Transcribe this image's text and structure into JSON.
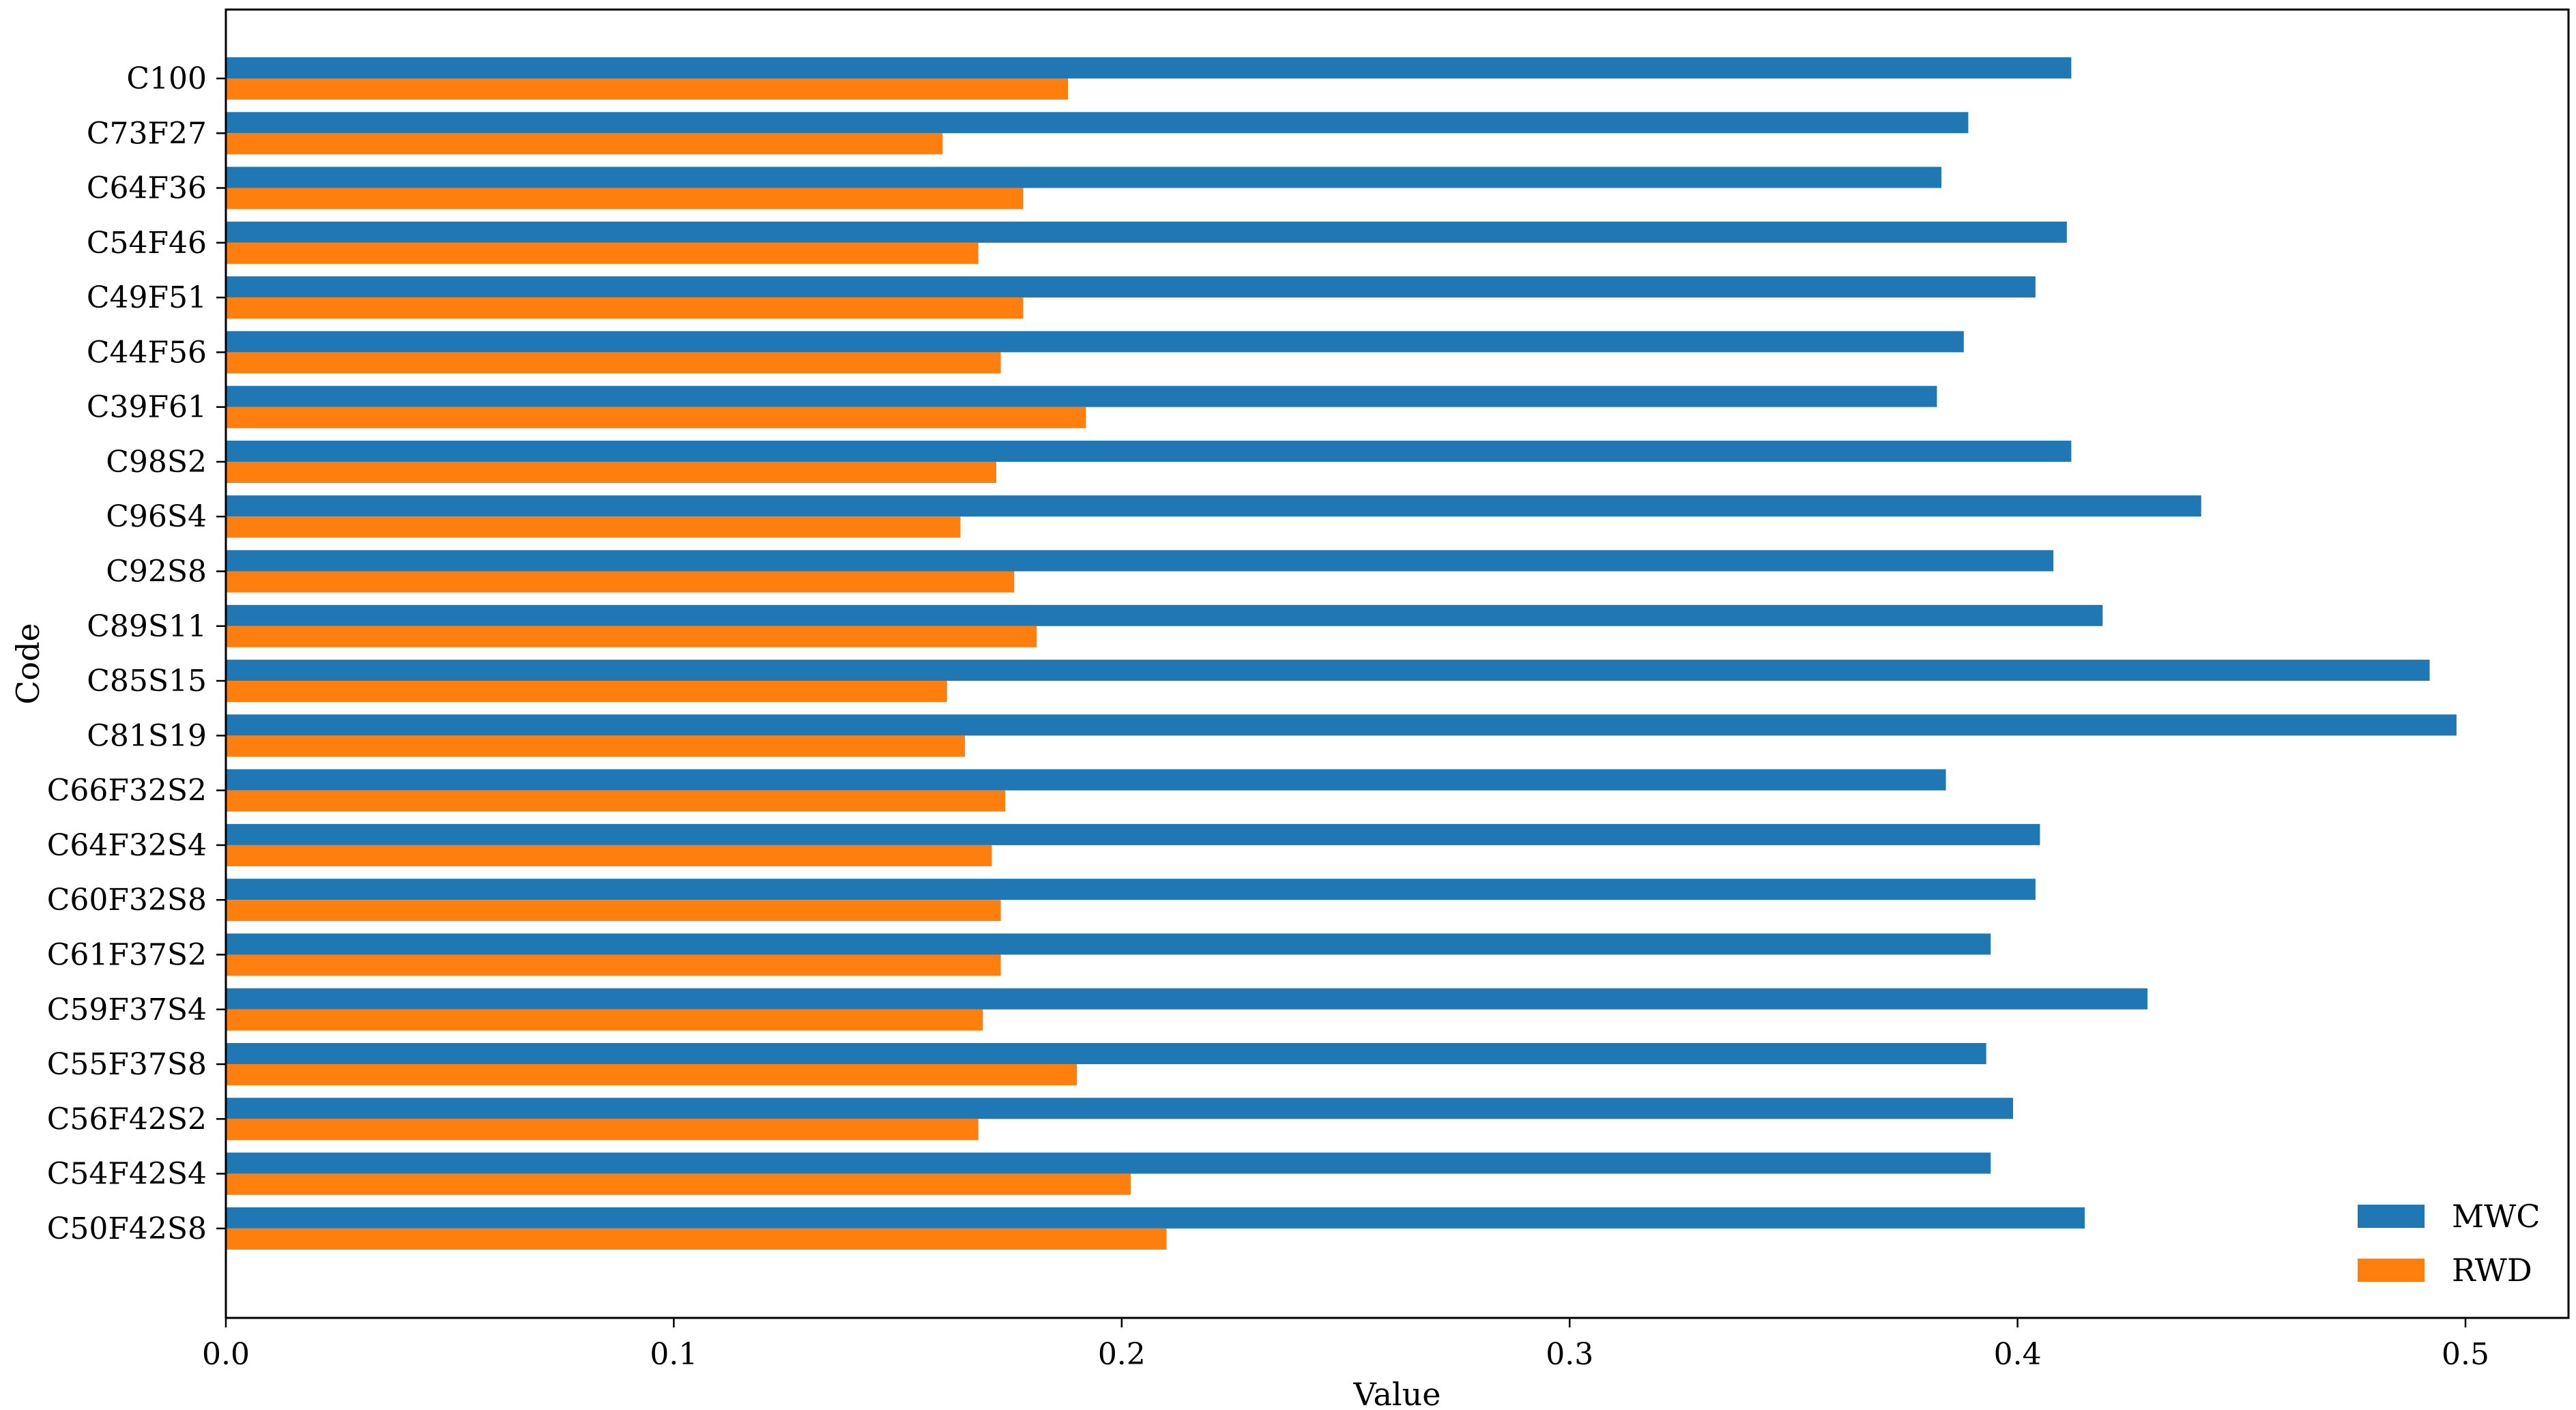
{
  "chart_data": {
    "type": "bar",
    "orientation": "horizontal",
    "title": "",
    "xlabel": "Value",
    "ylabel": "Code",
    "xlim": [
      0,
      0.523
    ],
    "xticks": [
      "0.0",
      "0.1",
      "0.2",
      "0.3",
      "0.4",
      "0.5"
    ],
    "grid": false,
    "legend_position": "bottom-right",
    "categories": [
      "C100",
      "C73F27",
      "C64F36",
      "C54F46",
      "C49F51",
      "C44F56",
      "C39F61",
      "C98S2",
      "C96S4",
      "C92S8",
      "C89S11",
      "C85S15",
      "C81S19",
      "C66F32S2",
      "C64F32S4",
      "C60F32S8",
      "C61F37S2",
      "C59F37S4",
      "C55F37S8",
      "C56F42S2",
      "C54F42S4",
      "C50F42S8"
    ],
    "series": [
      {
        "name": "MWC",
        "color": "#1f77b4",
        "values": [
          0.412,
          0.389,
          0.383,
          0.411,
          0.404,
          0.388,
          0.382,
          0.412,
          0.441,
          0.408,
          0.419,
          0.492,
          0.498,
          0.384,
          0.405,
          0.404,
          0.394,
          0.429,
          0.393,
          0.399,
          0.394,
          0.415
        ]
      },
      {
        "name": "RWD",
        "color": "#ff7f0e",
        "values": [
          0.188,
          0.16,
          0.178,
          0.168,
          0.178,
          0.173,
          0.192,
          0.172,
          0.164,
          0.176,
          0.181,
          0.161,
          0.165,
          0.174,
          0.171,
          0.173,
          0.173,
          0.169,
          0.19,
          0.168,
          0.202,
          0.21
        ]
      }
    ]
  }
}
